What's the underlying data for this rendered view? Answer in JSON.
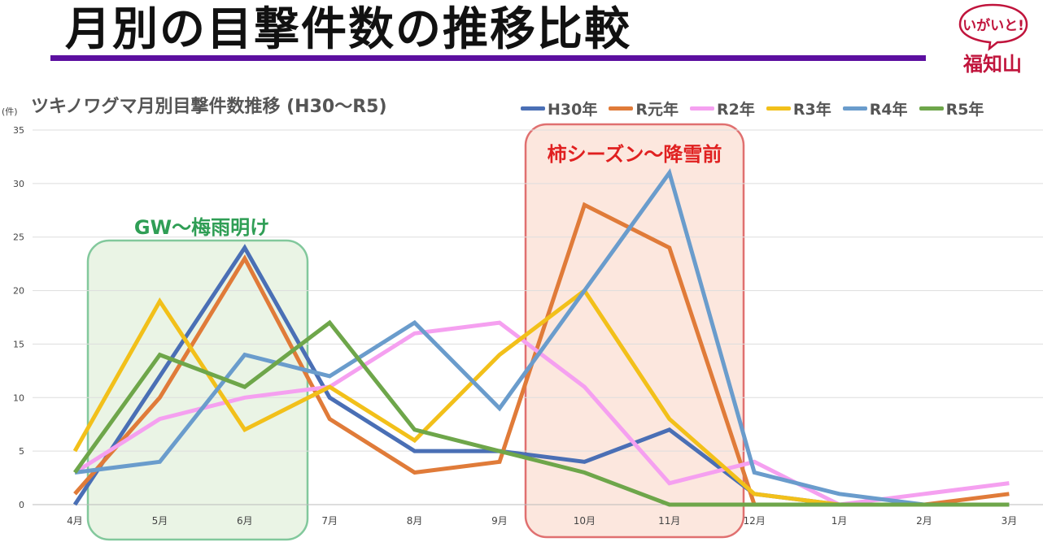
{
  "page_title": "月別の目撃件数の推移比較",
  "logo": {
    "top_text": "いがいと!",
    "bottom_text": "福知山",
    "color": "#c0143c"
  },
  "colors": {
    "title_bar": "#5c0fa0"
  },
  "chart_data": {
    "type": "line",
    "title": "ツキノワグマ月別目撃件数推移 (H30〜R5)",
    "ylabel": "(件)",
    "xlabel": "",
    "ylim": [
      0,
      35
    ],
    "yticks": [
      0,
      5,
      10,
      15,
      20,
      25,
      30,
      35
    ],
    "grid": true,
    "legend_position": "top-right",
    "categories": [
      "4月",
      "5月",
      "6月",
      "7月",
      "8月",
      "9月",
      "10月",
      "11月",
      "12月",
      "1月",
      "2月",
      "3月"
    ],
    "series": [
      {
        "name": "H30年",
        "color": "#4a6fb5",
        "values": [
          0,
          12,
          24,
          10,
          5,
          5,
          4,
          7,
          1,
          0,
          0,
          0
        ]
      },
      {
        "name": "R元年",
        "color": "#e07b39",
        "values": [
          1,
          10,
          23,
          8,
          3,
          4,
          28,
          24,
          0,
          0,
          0,
          1
        ]
      },
      {
        "name": "R2年",
        "color": "#f5a0f0",
        "values": [
          3,
          8,
          10,
          11,
          16,
          17,
          11,
          2,
          4,
          0,
          1,
          2
        ]
      },
      {
        "name": "R3年",
        "color": "#f2c01a",
        "values": [
          5,
          19,
          7,
          11,
          6,
          14,
          20,
          8,
          1,
          0,
          0,
          0
        ]
      },
      {
        "name": "R4年",
        "color": "#6a9ccc",
        "values": [
          3,
          4,
          14,
          12,
          17,
          9,
          20,
          31,
          3,
          1,
          0,
          0
        ]
      },
      {
        "name": "R5年",
        "color": "#6ea64a",
        "values": [
          3,
          14,
          11,
          17,
          7,
          5,
          3,
          0,
          0,
          0,
          0,
          0
        ]
      }
    ],
    "annotations": [
      {
        "label": "GW〜梅雨明け",
        "from_category": "4月",
        "to_category": "7月",
        "color": "#2f9e55",
        "stroke": "#82c89c",
        "fill": "#e6f2e0"
      },
      {
        "label": "柿シーズン〜降雪前",
        "from_category": "9月",
        "to_category": "12月",
        "color": "#e02020",
        "stroke": "#e07070",
        "fill": "#fbe3d8"
      }
    ]
  }
}
